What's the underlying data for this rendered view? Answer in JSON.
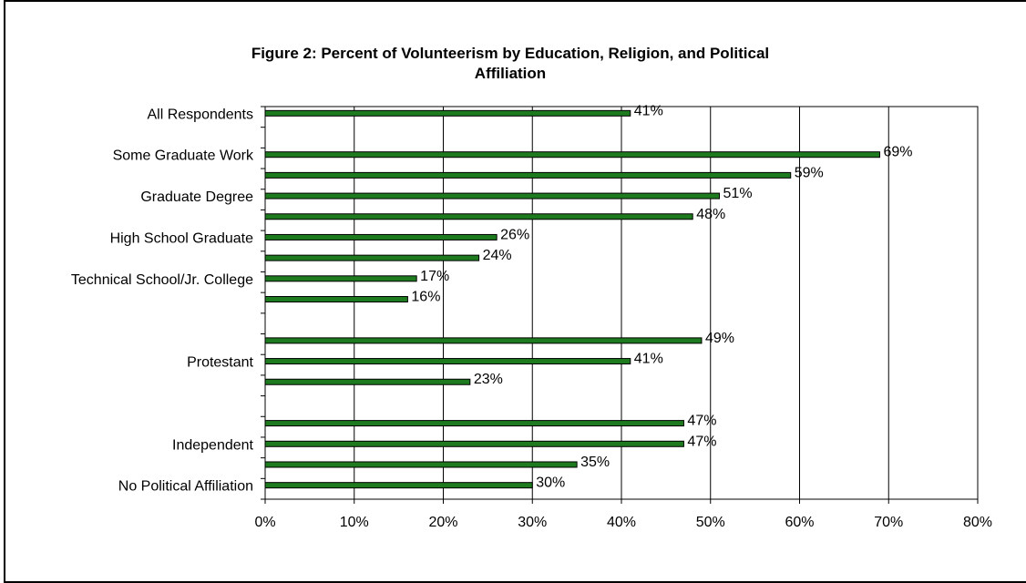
{
  "chart_data": {
    "type": "bar",
    "orientation": "horizontal",
    "title": "Figure 2: Percent of Volunteerism by Education, Religion, and Political Affiliation",
    "title_lines": [
      "Figure 2: Percent of Volunteerism by Education, Religion, and Political",
      "Affiliation"
    ],
    "xlabel": "",
    "ylabel": "",
    "xlim": [
      0,
      80
    ],
    "x_ticks": [
      "0%",
      "10%",
      "20%",
      "30%",
      "40%",
      "50%",
      "60%",
      "70%",
      "80%"
    ],
    "bars": [
      {
        "value": 41,
        "label": "41%"
      },
      {
        "value": null,
        "label": ""
      },
      {
        "value": 69,
        "label": "69%"
      },
      {
        "value": 59,
        "label": "59%"
      },
      {
        "value": 51,
        "label": "51%"
      },
      {
        "value": 48,
        "label": "48%"
      },
      {
        "value": 26,
        "label": "26%"
      },
      {
        "value": 24,
        "label": "24%"
      },
      {
        "value": 17,
        "label": "17%"
      },
      {
        "value": 16,
        "label": "16%"
      },
      {
        "value": null,
        "label": ""
      },
      {
        "value": 49,
        "label": "49%"
      },
      {
        "value": 41,
        "label": "41%"
      },
      {
        "value": 23,
        "label": "23%"
      },
      {
        "value": null,
        "label": ""
      },
      {
        "value": 47,
        "label": "47%"
      },
      {
        "value": 47,
        "label": "47%"
      },
      {
        "value": 35,
        "label": "35%"
      },
      {
        "value": 30,
        "label": "30%"
      }
    ],
    "category_labels": [
      {
        "text": "All Respondents",
        "slot": 0
      },
      {
        "text": "Some Graduate Work",
        "slot": 2
      },
      {
        "text": "Graduate Degree",
        "slot": 4
      },
      {
        "text": "High School Graduate",
        "slot": 6
      },
      {
        "text": "Technical School/Jr. College",
        "slot": 8
      },
      {
        "text": "Protestant",
        "slot": 12
      },
      {
        "text": "Independent",
        "slot": 16
      },
      {
        "text": "No Political Affiliation",
        "slot": 18
      }
    ],
    "grid": true,
    "bar_color": "#1e7a1e",
    "bar_edge_color": "#000000",
    "legend": "none"
  }
}
